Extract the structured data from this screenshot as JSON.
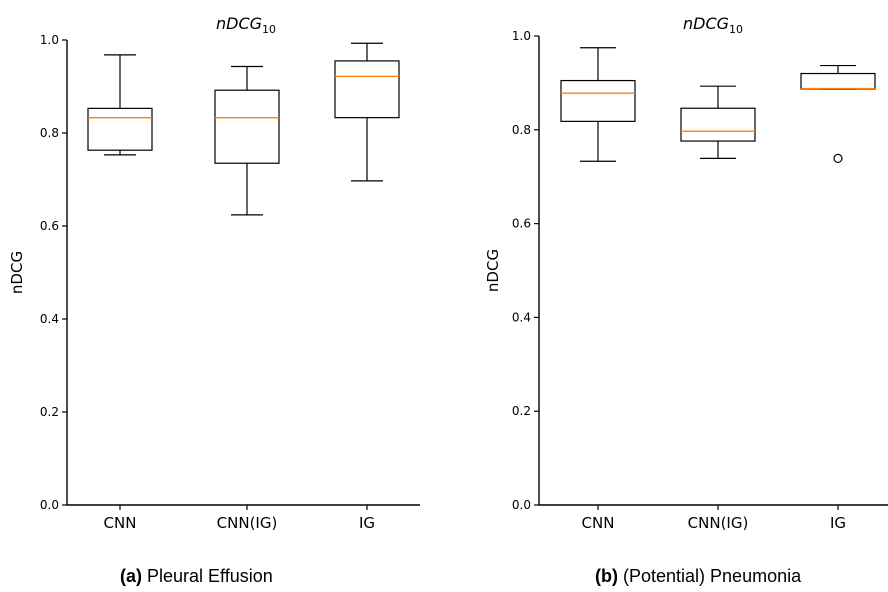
{
  "chart_data": [
    {
      "type": "box",
      "title_base": "nDCG",
      "title_sub": "10",
      "ylabel": "nDCG",
      "ylim": [
        0.0,
        1.0
      ],
      "yticks": [
        "0.0",
        "0.2",
        "0.4",
        "0.6",
        "0.8",
        "1.0"
      ],
      "categories": [
        "CNN",
        "CNN(IG)",
        "IG"
      ],
      "boxes": [
        {
          "whisker_low": 0.753,
          "q1": 0.763,
          "median": 0.833,
          "q3": 0.853,
          "whisker_high": 0.968,
          "outliers": []
        },
        {
          "whisker_low": 0.624,
          "q1": 0.735,
          "median": 0.833,
          "q3": 0.892,
          "whisker_high": 0.943,
          "outliers": []
        },
        {
          "whisker_low": 0.697,
          "q1": 0.833,
          "median": 0.922,
          "q3": 0.955,
          "whisker_high": 0.993,
          "outliers": []
        }
      ],
      "caption_label": "(a)",
      "caption_text": "Pleural Effusion",
      "median_color": "#ff7f0e"
    },
    {
      "type": "box",
      "title_base": "nDCG",
      "title_sub": "10",
      "ylabel": "nDCG",
      "ylim": [
        0.0,
        1.0
      ],
      "yticks": [
        "0.0",
        "0.2",
        "0.4",
        "0.6",
        "0.8",
        "1.0"
      ],
      "categories": [
        "CNN",
        "CNN(IG)",
        "IG"
      ],
      "boxes": [
        {
          "whisker_low": 0.733,
          "q1": 0.818,
          "median": 0.878,
          "q3": 0.905,
          "whisker_high": 0.975,
          "outliers": []
        },
        {
          "whisker_low": 0.739,
          "q1": 0.776,
          "median": 0.797,
          "q3": 0.846,
          "whisker_high": 0.893,
          "outliers": []
        },
        {
          "whisker_low": 0.887,
          "q1": 0.887,
          "median": 0.888,
          "q3": 0.92,
          "whisker_high": 0.937,
          "outliers": [
            0.739
          ]
        }
      ],
      "caption_label": "(b)",
      "caption_text": "(Potential) Pneumonia",
      "median_color": "#ff7f0e"
    }
  ]
}
